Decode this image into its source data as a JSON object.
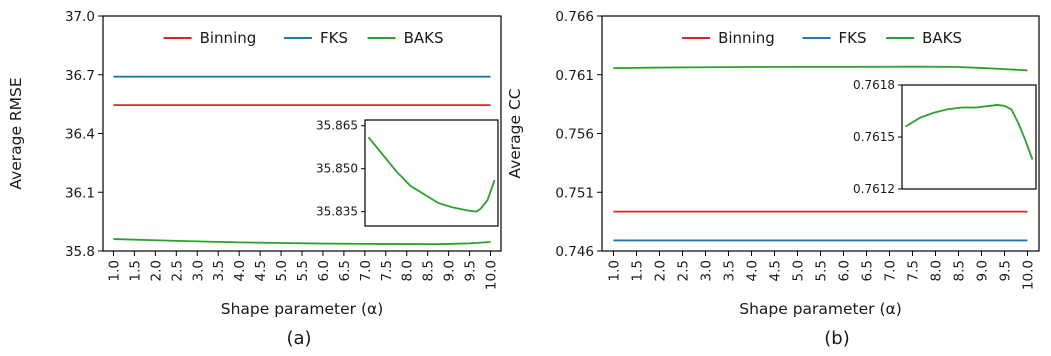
{
  "chart_data": [
    {
      "type": "line",
      "caption": "(a)",
      "xlabel": "Shape parameter (α)",
      "ylabel": "Average RMSE",
      "x_ticks": [
        "1.0",
        "1.5",
        "2.0",
        "2.5",
        "3.0",
        "3.5",
        "4.0",
        "4.5",
        "5.0",
        "5.5",
        "6.0",
        "6.5",
        "7.0",
        "7.5",
        "8.0",
        "8.5",
        "9.0",
        "9.5",
        "10.0"
      ],
      "xlim": [
        0.75,
        10.25
      ],
      "ylim": [
        35.8,
        37.0
      ],
      "y_ticks": [
        "35.8",
        "36.1",
        "36.4",
        "36.7",
        "37.0"
      ],
      "legend": {
        "placement": "top-center",
        "entries": [
          "Binning",
          "FKS",
          "BAKS"
        ]
      },
      "series": [
        {
          "name": "Binning",
          "color": "#d62728",
          "x": [
            1.0,
            10.0
          ],
          "y": [
            36.545,
            36.545
          ]
        },
        {
          "name": "FKS",
          "color": "#1f77b4",
          "x": [
            1.0,
            10.0
          ],
          "y": [
            36.69,
            36.69
          ]
        },
        {
          "name": "BAKS",
          "color": "#2ca02c",
          "x": [
            1.0,
            2.0,
            3.0,
            4.0,
            5.0,
            6.0,
            7.0,
            8.0,
            8.7,
            9.0,
            9.5,
            10.0
          ],
          "y": [
            35.861,
            35.855,
            35.849,
            35.844,
            35.841,
            35.838,
            35.8365,
            35.8355,
            35.835,
            35.836,
            35.839,
            35.846
          ]
        }
      ],
      "inset": {
        "series": "BAKS",
        "ylim": [
          35.83,
          35.867
        ],
        "y_ticks": [
          "35.835",
          "35.850",
          "35.865"
        ],
        "xlim": [
          0.75,
          10.25
        ]
      },
      "grid": false
    },
    {
      "type": "line",
      "caption": "(b)",
      "xlabel": "Shape parameter (α)",
      "ylabel": "Average CC",
      "x_ticks": [
        "1.0",
        "1.5",
        "2.0",
        "2.5",
        "3.0",
        "3.5",
        "4.0",
        "4.5",
        "5.0",
        "5.5",
        "6.0",
        "6.5",
        "7.0",
        "7.5",
        "8.0",
        "8.5",
        "9.0",
        "9.5",
        "10.0"
      ],
      "xlim": [
        0.75,
        10.25
      ],
      "ylim": [
        0.746,
        0.766
      ],
      "y_ticks": [
        "0.746",
        "0.751",
        "0.756",
        "0.761",
        "0.766"
      ],
      "legend": {
        "placement": "top-center",
        "entries": [
          "Binning",
          "FKS",
          "BAKS"
        ]
      },
      "series": [
        {
          "name": "Binning",
          "color": "#d62728",
          "x": [
            1.0,
            10.0
          ],
          "y": [
            0.74935,
            0.74935
          ]
        },
        {
          "name": "FKS",
          "color": "#1f77b4",
          "x": [
            1.0,
            10.0
          ],
          "y": [
            0.7469,
            0.7469
          ]
        },
        {
          "name": "BAKS",
          "color": "#2ca02c",
          "x": [
            1.0,
            2.0,
            3.0,
            4.0,
            5.0,
            6.0,
            7.0,
            7.5,
            8.0,
            8.5,
            9.0,
            9.5,
            10.0
          ],
          "y": [
            0.76156,
            0.76161,
            0.76164,
            0.76166,
            0.76167,
            0.76167,
            0.76168,
            0.761685,
            0.76168,
            0.76166,
            0.76158,
            0.76148,
            0.76137
          ]
        }
      ],
      "inset": {
        "series": "BAKS",
        "ylim": [
          0.7612,
          0.7618
        ],
        "y_ticks": [
          "0.7612",
          "0.7615",
          "0.7618"
        ],
        "xlim": [
          0.75,
          10.25
        ]
      },
      "grid": false
    }
  ]
}
